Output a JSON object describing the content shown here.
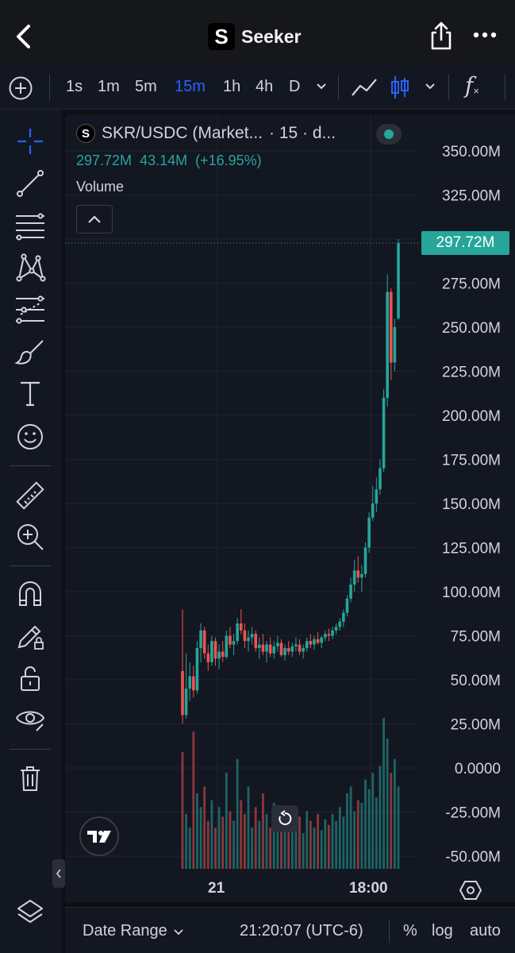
{
  "header": {
    "title": "Seeker",
    "logo_letter": "S",
    "back_icon": "chevron-left-icon",
    "share_icon": "share-icon",
    "more_icon": "more-horizontal-icon"
  },
  "timeframes": {
    "items": [
      "1s",
      "1m",
      "5m",
      "15m",
      "1h",
      "4h",
      "D"
    ],
    "active": "15m",
    "fx_label": "f"
  },
  "legend": {
    "symbol": "SKR/USDC (Market...",
    "interval": "· 15 · d...",
    "logo_letter": "S",
    "price": "297.72M",
    "change": "43.14M",
    "change_pct": "(+16.95%)",
    "volume_label": "Volume"
  },
  "price_axis": {
    "labels": [
      "350.00M",
      "325.00M",
      "275.00M",
      "250.00M",
      "225.00M",
      "200.00M",
      "175.00M",
      "150.00M",
      "125.00M",
      "100.00M",
      "75.00M",
      "50.00M",
      "25.00M",
      "0.0000",
      "-25.00M",
      "-50.00M"
    ],
    "current_price_label": "297.72M"
  },
  "time_axis": {
    "labels": [
      "21",
      "18:00"
    ]
  },
  "bottom": {
    "date_range": "Date Range",
    "clock": "21:20:07 (UTC-6)",
    "percent": "%",
    "log": "log",
    "auto": "auto"
  },
  "colors": {
    "up": "#26a69a",
    "down": "#ef5350",
    "accent": "#2962ff",
    "background": "#131722"
  },
  "chart_data": {
    "type": "candlestick",
    "ylim": [
      -50,
      350
    ],
    "current_price": 297.72,
    "candles": [
      [
        55,
        90,
        25,
        30
      ],
      [
        30,
        65,
        28,
        45
      ],
      [
        45,
        60,
        38,
        52
      ],
      [
        52,
        58,
        40,
        44
      ],
      [
        44,
        72,
        42,
        68
      ],
      [
        68,
        82,
        60,
        78
      ],
      [
        78,
        80,
        62,
        65
      ],
      [
        65,
        70,
        55,
        60
      ],
      [
        60,
        75,
        58,
        72
      ],
      [
        72,
        74,
        58,
        62
      ],
      [
        62,
        70,
        56,
        66
      ],
      [
        66,
        72,
        60,
        63
      ],
      [
        63,
        78,
        62,
        75
      ],
      [
        75,
        80,
        68,
        70
      ],
      [
        70,
        76,
        64,
        72
      ],
      [
        72,
        85,
        70,
        82
      ],
      [
        82,
        90,
        76,
        78
      ],
      [
        78,
        82,
        68,
        72
      ],
      [
        72,
        78,
        66,
        74
      ],
      [
        74,
        80,
        70,
        76
      ],
      [
        76,
        78,
        66,
        68
      ],
      [
        68,
        74,
        62,
        70
      ],
      [
        70,
        76,
        64,
        66
      ],
      [
        66,
        72,
        60,
        70
      ],
      [
        70,
        74,
        63,
        65
      ],
      [
        65,
        72,
        62,
        69
      ],
      [
        69,
        75,
        66,
        71
      ],
      [
        71,
        73,
        63,
        64
      ],
      [
        64,
        70,
        61,
        68
      ],
      [
        68,
        72,
        64,
        66
      ],
      [
        66,
        71,
        63,
        69
      ],
      [
        69,
        74,
        66,
        70
      ],
      [
        70,
        73,
        64,
        66
      ],
      [
        66,
        70,
        62,
        68
      ],
      [
        68,
        74,
        66,
        72
      ],
      [
        72,
        76,
        68,
        70
      ],
      [
        70,
        75,
        67,
        73
      ],
      [
        73,
        77,
        70,
        71
      ],
      [
        71,
        75,
        68,
        74
      ],
      [
        74,
        78,
        72,
        76
      ],
      [
        76,
        79,
        72,
        75
      ],
      [
        75,
        80,
        73,
        78
      ],
      [
        78,
        82,
        76,
        80
      ],
      [
        80,
        85,
        78,
        83
      ],
      [
        83,
        90,
        80,
        88
      ],
      [
        88,
        98,
        86,
        96
      ],
      [
        96,
        108,
        94,
        104
      ],
      [
        104,
        118,
        100,
        112
      ],
      [
        112,
        120,
        105,
        108
      ],
      [
        108,
        115,
        100,
        110
      ],
      [
        110,
        128,
        108,
        125
      ],
      [
        125,
        145,
        122,
        142
      ],
      [
        142,
        160,
        140,
        150
      ],
      [
        150,
        165,
        145,
        158
      ],
      [
        158,
        175,
        155,
        170
      ],
      [
        170,
        215,
        168,
        210
      ],
      [
        210,
        280,
        205,
        270
      ],
      [
        270,
        272,
        220,
        230
      ],
      [
        230,
        255,
        225,
        250
      ],
      [
        255,
        300,
        254,
        297.72
      ]
    ],
    "volumes": [
      85,
      40,
      30,
      100,
      55,
      45,
      60,
      35,
      50,
      30,
      45,
      38,
      70,
      42,
      35,
      80,
      50,
      40,
      60,
      30,
      45,
      35,
      55,
      40,
      30,
      48,
      35,
      28,
      40,
      32,
      45,
      30,
      38,
      26,
      42,
      35,
      30,
      40,
      28,
      36,
      32,
      40,
      35,
      45,
      38,
      55,
      60,
      42,
      50,
      48,
      65,
      58,
      70,
      52,
      75,
      110,
      95,
      70,
      80,
      60
    ]
  }
}
